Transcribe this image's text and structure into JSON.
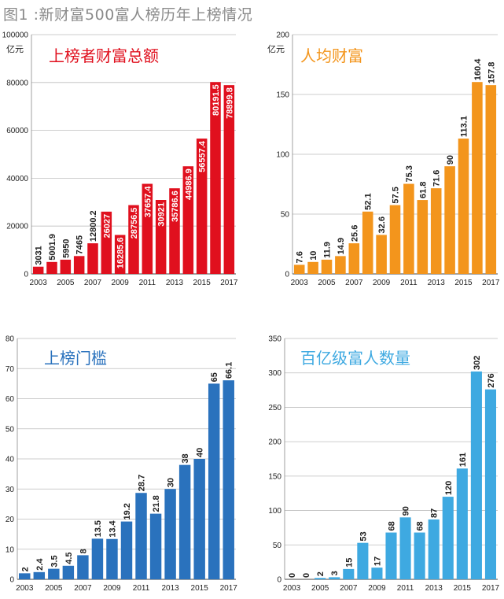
{
  "figure_title": "图1 :新财富500富人榜历年上榜情况",
  "x_tick_labels": [
    "2003",
    "2005",
    "2007",
    "2009",
    "2011",
    "2013",
    "2015",
    "2017"
  ],
  "chart_data": [
    {
      "type": "bar",
      "title": "上榜者财富总额",
      "ylabel": "亿元",
      "color": "#e0101e",
      "label_placement": "inside",
      "categories": [
        "2003",
        "2004",
        "2005",
        "2006",
        "2007",
        "2008",
        "2009",
        "2010",
        "2011",
        "2012",
        "2013",
        "2014",
        "2015",
        "2016",
        "2017"
      ],
      "values": [
        3031,
        5001.9,
        5950,
        7465,
        12800.2,
        26027,
        16285.6,
        28756.5,
        37657.4,
        30921,
        35786.6,
        44986.9,
        56557.4,
        80191.5,
        78899.8
      ],
      "ylim": [
        0,
        100000
      ],
      "yticks": [
        "0",
        "20000",
        "40000",
        "60000",
        "80000",
        "100000"
      ],
      "grid": true
    },
    {
      "type": "bar",
      "title": "人均财富",
      "ylabel": "亿元",
      "color": "#f3951c",
      "label_placement": "above",
      "categories": [
        "2003",
        "2004",
        "2005",
        "2006",
        "2007",
        "2008",
        "2009",
        "2010",
        "2011",
        "2012",
        "2013",
        "2014",
        "2015",
        "2016",
        "2017"
      ],
      "values": [
        7.6,
        10,
        11.9,
        14.9,
        25.6,
        52.1,
        32.6,
        57.5,
        75.3,
        61.8,
        71.6,
        90,
        113.1,
        160.4,
        157.8
      ],
      "ylim": [
        0,
        200
      ],
      "yticks": [
        "0",
        "50",
        "100",
        "150",
        "200"
      ],
      "grid": true
    },
    {
      "type": "bar",
      "title": "上榜门槛",
      "ylabel": "",
      "color": "#2a72bd",
      "label_placement": "above",
      "categories": [
        "2003",
        "2004",
        "2005",
        "2006",
        "2007",
        "2008",
        "2009",
        "2010",
        "2011",
        "2012",
        "2013",
        "2014",
        "2015",
        "2016",
        "2017"
      ],
      "values": [
        2,
        2.4,
        3.5,
        4.5,
        8,
        13.5,
        13.4,
        19.2,
        28.7,
        21.8,
        30,
        38,
        40,
        65,
        66.1
      ],
      "ylim": [
        0,
        80
      ],
      "yticks": [
        "0",
        "10",
        "20",
        "30",
        "40",
        "50",
        "60",
        "70",
        "80"
      ],
      "grid": true
    },
    {
      "type": "bar",
      "title": "百亿级富人数量",
      "ylabel": "",
      "color": "#3ea9e1",
      "label_placement": "above",
      "categories": [
        "2003",
        "2004",
        "2005",
        "2006",
        "2007",
        "2008",
        "2009",
        "2010",
        "2011",
        "2012",
        "2013",
        "2014",
        "2015",
        "2016",
        "2017"
      ],
      "values": [
        0,
        0,
        2,
        3,
        15,
        53,
        17,
        68,
        90,
        68,
        87,
        120,
        161,
        302,
        276
      ],
      "ylim": [
        0,
        350
      ],
      "yticks": [
        "0",
        "50",
        "100",
        "150",
        "200",
        "250",
        "300",
        "350"
      ],
      "grid": true
    }
  ]
}
